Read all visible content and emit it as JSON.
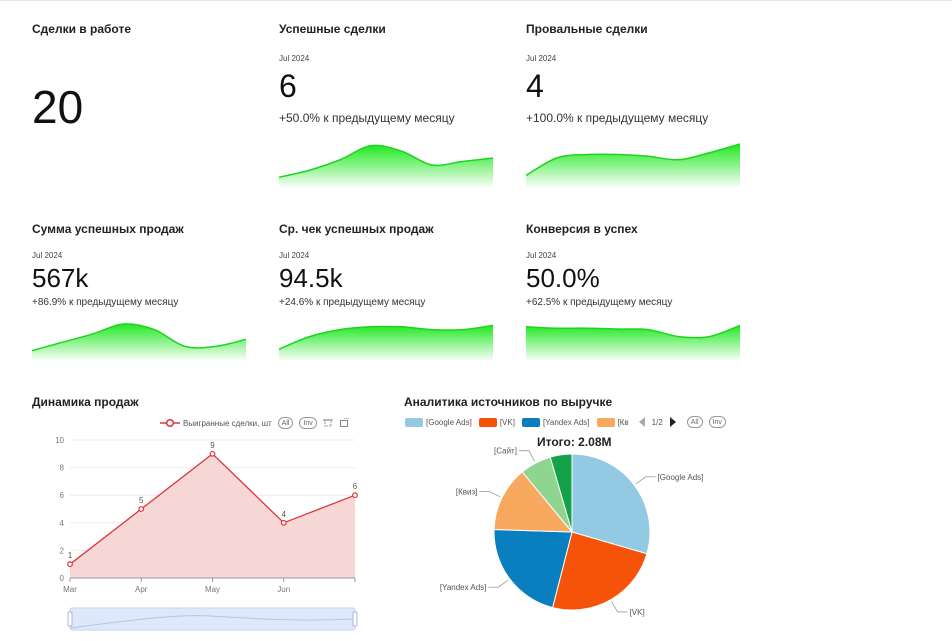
{
  "cards": [
    {
      "title": "Сделки в работе",
      "period": "",
      "value": "20",
      "delta": "",
      "sparkline": []
    },
    {
      "title": "Успешные сделки",
      "period": "Jul 2024",
      "value": "6",
      "delta": "+50.0% к предыдущему месяцу",
      "sparkline": [
        0.05,
        0.25,
        0.55,
        0.95,
        0.8,
        0.4,
        0.5,
        0.6
      ]
    },
    {
      "title": "Провальные сделки",
      "period": "Jul 2024",
      "value": "4",
      "delta": "+100.0% к предыдущему месяцу",
      "sparkline": [
        0.1,
        0.6,
        0.7,
        0.7,
        0.65,
        0.55,
        0.75,
        1.0
      ]
    },
    {
      "title": "Сумма успешных продаж",
      "period": "Jul 2024",
      "value": "567k",
      "delta": "+86.9% к предыдущему месяцу",
      "sparkline": [
        0.05,
        0.35,
        0.65,
        1.0,
        0.8,
        0.2,
        0.2,
        0.45
      ]
    },
    {
      "title": "Ср. чек успешных продаж",
      "period": "Jul 2024",
      "value": "94.5k",
      "delta": "+24.6% к предыдущему месяцу",
      "sparkline": [
        0.1,
        0.55,
        0.8,
        0.9,
        0.9,
        0.8,
        0.8,
        0.95
      ]
    },
    {
      "title": "Конверсия в успех",
      "period": "Jul 2024",
      "value": "50.0%",
      "delta": "+62.5% к предыдущему месяцу",
      "sparkline": [
        0.9,
        0.85,
        0.85,
        0.82,
        0.8,
        0.55,
        0.55,
        0.95
      ]
    }
  ],
  "sales_panel": {
    "title": "Динамика продаж",
    "legend_label": "Выигранные сделки, шт",
    "all_label": "All",
    "inv_label": "Inv"
  },
  "sources_panel": {
    "title": "Аналитика источников по выручке",
    "legend": [
      {
        "label": "[Google Ads]",
        "color": "#93c9e3"
      },
      {
        "label": "[VK]",
        "color": "#f5530a"
      },
      {
        "label": "[Yandex Ads]",
        "color": "#0a7fc0"
      },
      {
        "label": "[Кв",
        "color": "#f8a85f"
      }
    ],
    "page_label": "1/2",
    "all_label": "All",
    "inv_label": "Inv",
    "total": "Итого: 2.08M"
  },
  "chart_data": [
    {
      "type": "line",
      "categories": [
        "Mar",
        "Apr",
        "May",
        "Jun",
        ""
      ],
      "series": [
        {
          "name": "Выигранные сделки, шт",
          "values": [
            1,
            5,
            9,
            4,
            6
          ]
        }
      ],
      "ylim": [
        0,
        10
      ],
      "yticks": [
        0,
        2,
        4,
        6,
        8,
        10
      ],
      "color": "#d9373b",
      "fill": "#f6cfcf"
    },
    {
      "type": "pie",
      "slices": [
        {
          "label": "[Google Ads]",
          "value": 29.5,
          "color": "#93c9e3"
        },
        {
          "label": "[VK]",
          "value": 24.5,
          "color": "#f5530a"
        },
        {
          "label": "[Yandex Ads]",
          "value": 21.5,
          "color": "#0a7fc0"
        },
        {
          "label": "[Квиз]",
          "value": 13.5,
          "color": "#f8a85f"
        },
        {
          "label": "[Сайт]",
          "value": 6.5,
          "color": "#8fd48f"
        },
        {
          "label": "",
          "value": 4.5,
          "color": "#13a24a"
        }
      ]
    }
  ]
}
